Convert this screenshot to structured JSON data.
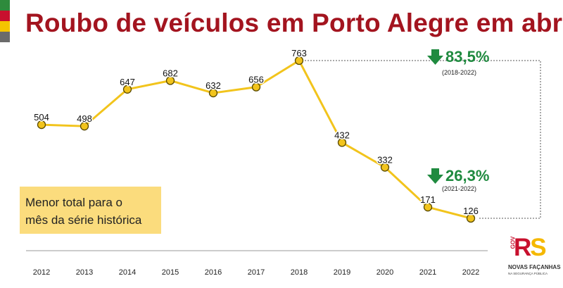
{
  "chart_data": {
    "type": "line",
    "title": "Roubo de veículos em Porto Alegre em abril",
    "xlabel": "",
    "ylabel": "",
    "categories": [
      "2012",
      "2013",
      "2014",
      "2015",
      "2016",
      "2017",
      "2018",
      "2019",
      "2020",
      "2021",
      "2022"
    ],
    "series": [
      {
        "values": [
          504,
          498,
          647,
          682,
          632,
          656,
          763,
          432,
          332,
          171,
          126
        ]
      }
    ],
    "ylim": [
      0,
      800
    ],
    "grid": false,
    "colors": {
      "line": "#f2c41c",
      "marker_fill": "#f2c41c",
      "marker_stroke": "#5a4a00",
      "title": "#a3141f",
      "change": "#1f8a3f"
    }
  },
  "highlight": {
    "lines": [
      "Menor total para o",
      "mês da série histórica"
    ]
  },
  "changes": [
    {
      "value": "83,5%",
      "period": "(2018-2022)"
    },
    {
      "value": "26,3%",
      "period": "(2021-2022)"
    }
  ],
  "logo": {
    "gov": "GOV",
    "r": "R",
    "s": "S",
    "tagline": "NOVAS FAÇANHAS",
    "subtitle": "NA SEGURANÇA PÚBLICA"
  },
  "icons": [
    "down-arrow-icon",
    "down-arrow-icon"
  ]
}
